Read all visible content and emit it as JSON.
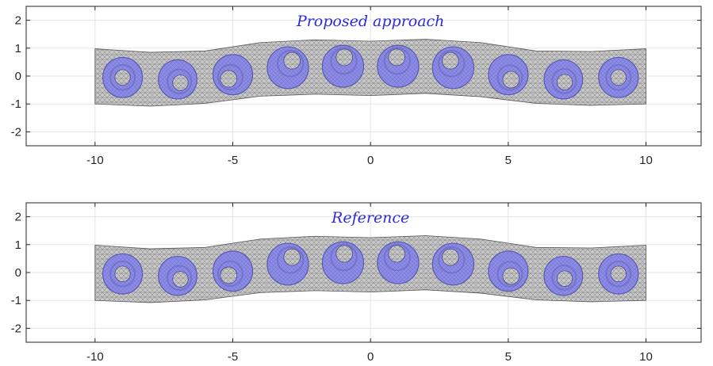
{
  "chart_data": [
    {
      "type": "mesh-plot",
      "title": "Proposed approach",
      "xlim": [
        -12.5,
        12.0
      ],
      "ylim": [
        -2.5,
        2.5
      ],
      "xticks": [
        -10,
        -5,
        0,
        5,
        10
      ],
      "yticks": [
        2,
        1,
        0,
        -1,
        -2
      ],
      "grid": true,
      "beam": {
        "x_range": [
          -10,
          10
        ],
        "top_edge": [
          [
            -10,
            0.98
          ],
          [
            -8,
            0.85
          ],
          [
            -6,
            0.9
          ],
          [
            -4,
            1.2
          ],
          [
            -2,
            1.3
          ],
          [
            0,
            1.25
          ],
          [
            2,
            1.32
          ],
          [
            4,
            1.2
          ],
          [
            6,
            0.9
          ],
          [
            8,
            0.88
          ],
          [
            10,
            0.98
          ]
        ],
        "bottom_edge": [
          [
            -10,
            -1.0
          ],
          [
            -8,
            -1.08
          ],
          [
            -6,
            -0.98
          ],
          [
            -4,
            -0.72
          ],
          [
            -2,
            -0.65
          ],
          [
            0,
            -0.7
          ],
          [
            2,
            -0.62
          ],
          [
            4,
            -0.74
          ],
          [
            6,
            -0.98
          ],
          [
            8,
            -1.05
          ],
          [
            10,
            -1.0
          ]
        ],
        "fill_color": "#c8c8c8",
        "mesh_color": "#6b6b6b"
      },
      "inclusions": [
        {
          "cx": -9.0,
          "cy": -0.05,
          "r": 0.72,
          "hole_dx": 0.0,
          "hole_dy": 0.0,
          "hole_r": 0.28
        },
        {
          "cx": -7.0,
          "cy": -0.12,
          "r": 0.7,
          "hole_dx": 0.1,
          "hole_dy": -0.12,
          "hole_r": 0.28
        },
        {
          "cx": -5.0,
          "cy": 0.05,
          "r": 0.72,
          "hole_dx": -0.15,
          "hole_dy": -0.15,
          "hole_r": 0.3
        },
        {
          "cx": -3.0,
          "cy": 0.3,
          "r": 0.75,
          "hole_dx": 0.15,
          "hole_dy": 0.25,
          "hole_r": 0.3
        },
        {
          "cx": -1.0,
          "cy": 0.35,
          "r": 0.75,
          "hole_dx": 0.05,
          "hole_dy": 0.32,
          "hole_r": 0.3
        },
        {
          "cx": 1.0,
          "cy": 0.35,
          "r": 0.75,
          "hole_dx": -0.05,
          "hole_dy": 0.32,
          "hole_r": 0.3
        },
        {
          "cx": 3.0,
          "cy": 0.3,
          "r": 0.75,
          "hole_dx": -0.1,
          "hole_dy": 0.25,
          "hole_r": 0.3
        },
        {
          "cx": 5.0,
          "cy": 0.05,
          "r": 0.72,
          "hole_dx": 0.1,
          "hole_dy": -0.18,
          "hole_r": 0.3
        },
        {
          "cx": 7.0,
          "cy": -0.12,
          "r": 0.7,
          "hole_dx": 0.05,
          "hole_dy": -0.1,
          "hole_r": 0.28
        },
        {
          "cx": 9.0,
          "cy": -0.05,
          "r": 0.72,
          "hole_dx": 0.0,
          "hole_dy": 0.0,
          "hole_r": 0.28
        }
      ],
      "inclusion_color": "#8c8ce6",
      "inclusion_dark_color": "#5a5ab0"
    },
    {
      "type": "mesh-plot",
      "title": "Reference",
      "xlim": [
        -12.5,
        12.0
      ],
      "ylim": [
        -2.5,
        2.5
      ],
      "xticks": [
        -10,
        -5,
        0,
        5,
        10
      ],
      "yticks": [
        2,
        1,
        0,
        -1,
        -2
      ],
      "grid": true,
      "beam": {
        "x_range": [
          -10,
          10
        ],
        "top_edge": [
          [
            -10,
            0.98
          ],
          [
            -8,
            0.85
          ],
          [
            -6,
            0.9
          ],
          [
            -4,
            1.2
          ],
          [
            -2,
            1.3
          ],
          [
            0,
            1.25
          ],
          [
            2,
            1.32
          ],
          [
            4,
            1.2
          ],
          [
            6,
            0.9
          ],
          [
            8,
            0.88
          ],
          [
            10,
            0.98
          ]
        ],
        "bottom_edge": [
          [
            -10,
            -1.0
          ],
          [
            -8,
            -1.08
          ],
          [
            -6,
            -0.98
          ],
          [
            -4,
            -0.72
          ],
          [
            -2,
            -0.65
          ],
          [
            0,
            -0.7
          ],
          [
            2,
            -0.62
          ],
          [
            4,
            -0.74
          ],
          [
            6,
            -0.98
          ],
          [
            8,
            -1.05
          ],
          [
            10,
            -1.0
          ]
        ],
        "fill_color": "#c8c8c8",
        "mesh_color": "#6b6b6b"
      },
      "inclusions": [
        {
          "cx": -9.0,
          "cy": -0.05,
          "r": 0.72,
          "hole_dx": 0.0,
          "hole_dy": 0.0,
          "hole_r": 0.28
        },
        {
          "cx": -7.0,
          "cy": -0.12,
          "r": 0.7,
          "hole_dx": 0.1,
          "hole_dy": -0.12,
          "hole_r": 0.28
        },
        {
          "cx": -5.0,
          "cy": 0.05,
          "r": 0.72,
          "hole_dx": -0.15,
          "hole_dy": -0.15,
          "hole_r": 0.3
        },
        {
          "cx": -3.0,
          "cy": 0.3,
          "r": 0.75,
          "hole_dx": 0.15,
          "hole_dy": 0.25,
          "hole_r": 0.3
        },
        {
          "cx": -1.0,
          "cy": 0.35,
          "r": 0.75,
          "hole_dx": 0.05,
          "hole_dy": 0.32,
          "hole_r": 0.3
        },
        {
          "cx": 1.0,
          "cy": 0.35,
          "r": 0.75,
          "hole_dx": -0.05,
          "hole_dy": 0.32,
          "hole_r": 0.3
        },
        {
          "cx": 3.0,
          "cy": 0.3,
          "r": 0.75,
          "hole_dx": -0.1,
          "hole_dy": 0.25,
          "hole_r": 0.3
        },
        {
          "cx": 5.0,
          "cy": 0.05,
          "r": 0.72,
          "hole_dx": 0.1,
          "hole_dy": -0.18,
          "hole_r": 0.3
        },
        {
          "cx": 7.0,
          "cy": -0.12,
          "r": 0.7,
          "hole_dx": 0.05,
          "hole_dy": -0.1,
          "hole_r": 0.28
        },
        {
          "cx": 9.0,
          "cy": -0.05,
          "r": 0.72,
          "hole_dx": 0.0,
          "hole_dy": 0.0,
          "hole_r": 0.28
        }
      ],
      "inclusion_color": "#8c8ce6",
      "inclusion_dark_color": "#5a5ab0"
    }
  ]
}
